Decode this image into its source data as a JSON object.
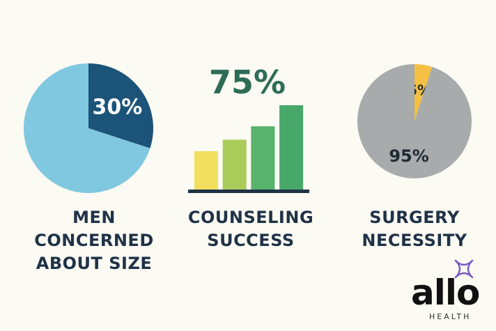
{
  "chart_data": [
    {
      "type": "pie",
      "slices": [
        {
          "label": "30%",
          "value": 30,
          "color": "#1c5378"
        },
        {
          "label": "",
          "value": 70,
          "color": "#80c8df"
        }
      ],
      "caption_lines": [
        "MEN",
        "CONCERNED",
        "ABOUT SIZE"
      ]
    },
    {
      "type": "bar",
      "headline": "75%",
      "categories": [
        "",
        "",
        "",
        ""
      ],
      "values": [
        1.0,
        1.3,
        1.65,
        2.2
      ],
      "colors": [
        "#f3df5f",
        "#a9cc5b",
        "#58b36d",
        "#48a86a"
      ],
      "caption_lines": [
        "COUNSELING",
        "SUCCESS"
      ]
    },
    {
      "type": "pie",
      "slices": [
        {
          "label": "5%",
          "value": 5,
          "color": "#f4bf43"
        },
        {
          "label": "95%",
          "value": 95,
          "color": "#a7abab"
        }
      ],
      "caption_lines": [
        "SURGERY",
        "NECESSITY"
      ]
    }
  ],
  "logo": {
    "brand": "allo",
    "sub": "HEALTH",
    "accent_color": "#7c5cc4"
  }
}
